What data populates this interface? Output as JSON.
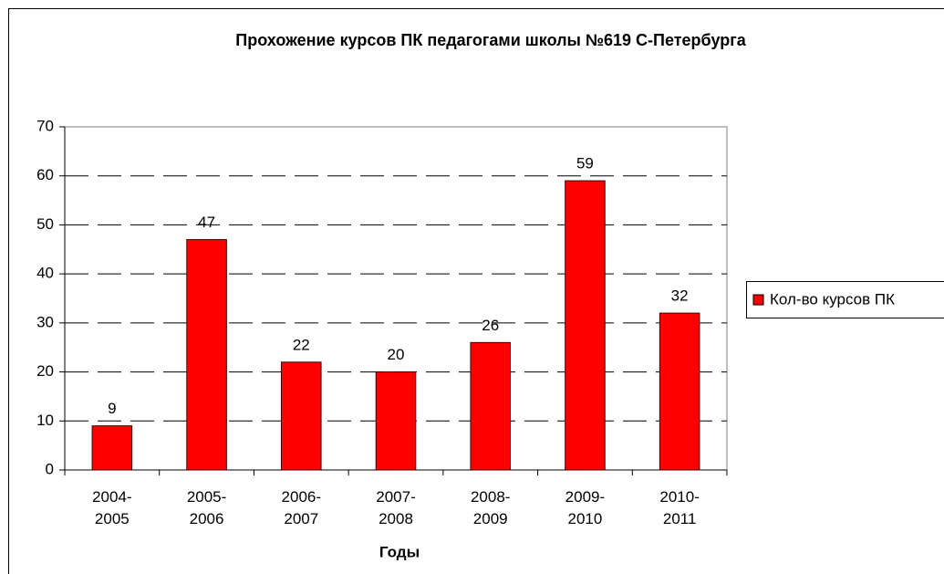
{
  "chart_data": {
    "type": "bar",
    "title": "Прохожение курсов ПК педагогами школы №619 С-Петербурга",
    "x_label": "Годы",
    "categories": [
      "2004-2005",
      "2005-2006",
      "2006-2007",
      "2007-2008",
      "2008-2009",
      "2009-2010",
      "2010-2011"
    ],
    "series": [
      {
        "name": "Кол-во курсов ПК",
        "color": "#ff0000",
        "values": [
          9,
          47,
          22,
          20,
          26,
          59,
          32
        ]
      }
    ],
    "ylim": [
      0,
      70
    ],
    "yticks": [
      0,
      10,
      20,
      30,
      40,
      50,
      60,
      70
    ],
    "grid": true,
    "legend": "right"
  }
}
